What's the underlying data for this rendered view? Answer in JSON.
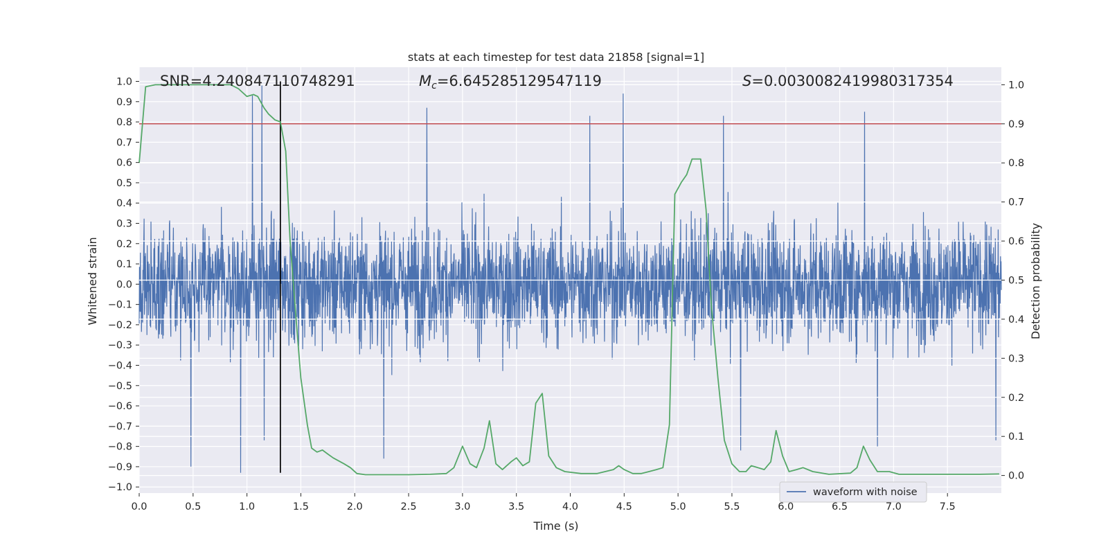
{
  "chart_data": {
    "type": "line",
    "title": "stats at each timestep for test data 21858 [signal=1]",
    "xlabel": "Time (s)",
    "ylabel": "Whitened strain",
    "ylabel_right": "Detection probability",
    "xlim": [
      0.0,
      8.0
    ],
    "ylim": [
      -1.03,
      1.07
    ],
    "ylim_right": [
      -0.045,
      1.045
    ],
    "x_ticks": [
      "0.0",
      "0.5",
      "1.0",
      "1.5",
      "2.0",
      "2.5",
      "3.0",
      "3.5",
      "4.0",
      "4.5",
      "5.0",
      "5.5",
      "6.0",
      "6.5",
      "7.0",
      "7.5"
    ],
    "y_ticks": [
      "1.0",
      "0.9",
      "0.8",
      "0.7",
      "0.6",
      "0.5",
      "0.4",
      "0.3",
      "0.2",
      "0.1",
      "0.0",
      "−0.1",
      "−0.2",
      "−0.3",
      "−0.4",
      "−0.5",
      "−0.6",
      "−0.7",
      "−0.8",
      "−0.9",
      "−1.0"
    ],
    "y_ticks_right": [
      "1.0",
      "0.9",
      "0.8",
      "0.7",
      "0.6",
      "0.5",
      "0.4",
      "0.3",
      "0.2",
      "0.1",
      "0.0"
    ],
    "annotations": {
      "snr": "SNR=4.240847110748291",
      "mc_symbol": "M",
      "mc_sub": "c",
      "mc_value": "=6.645285129547119",
      "s_symbol": "S",
      "s_value": "=0.0030082419980317354"
    },
    "legend": {
      "entries": [
        "waveform with noise"
      ],
      "placement": "lower-right"
    },
    "threshold_line": {
      "value": 0.9,
      "axis": "right",
      "color": "#c44e52"
    },
    "marker_line": {
      "x": 1.31,
      "y_range": [
        -0.93,
        1.0
      ],
      "color": "#000000"
    },
    "series": [
      {
        "name": "waveform with noise",
        "axis": "left",
        "color": "#4c72b0",
        "description": "dense whitened strain time series, typical amplitude about ±0.35 to ±0.6 with spikes",
        "spikes": [
          {
            "x": 0.48,
            "y": -0.9
          },
          {
            "x": 0.94,
            "y": -0.93
          },
          {
            "x": 1.05,
            "y": 0.93
          },
          {
            "x": 1.14,
            "y": 0.98
          },
          {
            "x": 1.16,
            "y": -0.77
          },
          {
            "x": 2.67,
            "y": 0.87
          },
          {
            "x": 4.49,
            "y": 0.94
          },
          {
            "x": 4.18,
            "y": 0.83
          },
          {
            "x": 5.42,
            "y": 0.83
          },
          {
            "x": 6.73,
            "y": 0.85
          },
          {
            "x": 6.85,
            "y": -0.8
          },
          {
            "x": 2.27,
            "y": -0.86
          },
          {
            "x": 5.58,
            "y": -0.82
          },
          {
            "x": 7.95,
            "y": -0.77
          }
        ]
      },
      {
        "name": "detection probability",
        "axis": "right",
        "color": "#55a868",
        "x": [
          0.0,
          0.06,
          0.15,
          0.3,
          0.5,
          0.7,
          0.85,
          0.92,
          1.0,
          1.06,
          1.1,
          1.16,
          1.2,
          1.26,
          1.31,
          1.36,
          1.4,
          1.45,
          1.5,
          1.56,
          1.6,
          1.65,
          1.7,
          1.75,
          1.8,
          1.9,
          1.96,
          2.02,
          2.1,
          2.3,
          2.5,
          2.7,
          2.85,
          2.92,
          3.0,
          3.07,
          3.13,
          3.2,
          3.25,
          3.31,
          3.37,
          3.45,
          3.5,
          3.56,
          3.62,
          3.68,
          3.74,
          3.8,
          3.87,
          3.95,
          4.1,
          4.25,
          4.4,
          4.45,
          4.5,
          4.58,
          4.66,
          4.73,
          4.8,
          4.86,
          4.92,
          4.97,
          5.03,
          5.08,
          5.13,
          5.17,
          5.21,
          5.26,
          5.31,
          5.37,
          5.43,
          5.5,
          5.57,
          5.63,
          5.68,
          5.74,
          5.8,
          5.86,
          5.91,
          5.97,
          6.03,
          6.1,
          6.16,
          6.25,
          6.4,
          6.6,
          6.66,
          6.72,
          6.78,
          6.85,
          6.9,
          6.96,
          7.05,
          7.3,
          7.6,
          7.8,
          7.98
        ],
        "y": [
          0.8,
          0.995,
          1.0,
          1.0,
          1.0,
          1.0,
          1.0,
          0.99,
          0.97,
          0.975,
          0.97,
          0.94,
          0.925,
          0.91,
          0.905,
          0.83,
          0.6,
          0.42,
          0.25,
          0.13,
          0.07,
          0.06,
          0.065,
          0.055,
          0.045,
          0.03,
          0.02,
          0.005,
          0.002,
          0.002,
          0.002,
          0.003,
          0.005,
          0.02,
          0.075,
          0.03,
          0.02,
          0.07,
          0.14,
          0.03,
          0.015,
          0.035,
          0.045,
          0.025,
          0.035,
          0.185,
          0.21,
          0.05,
          0.02,
          0.01,
          0.005,
          0.005,
          0.015,
          0.025,
          0.015,
          0.005,
          0.005,
          0.01,
          0.015,
          0.02,
          0.13,
          0.72,
          0.75,
          0.77,
          0.81,
          0.81,
          0.81,
          0.68,
          0.43,
          0.25,
          0.09,
          0.03,
          0.01,
          0.01,
          0.025,
          0.02,
          0.015,
          0.035,
          0.115,
          0.05,
          0.01,
          0.015,
          0.02,
          0.01,
          0.003,
          0.006,
          0.02,
          0.075,
          0.04,
          0.01,
          0.01,
          0.01,
          0.003,
          0.003,
          0.003,
          0.003,
          0.004
        ]
      }
    ]
  }
}
